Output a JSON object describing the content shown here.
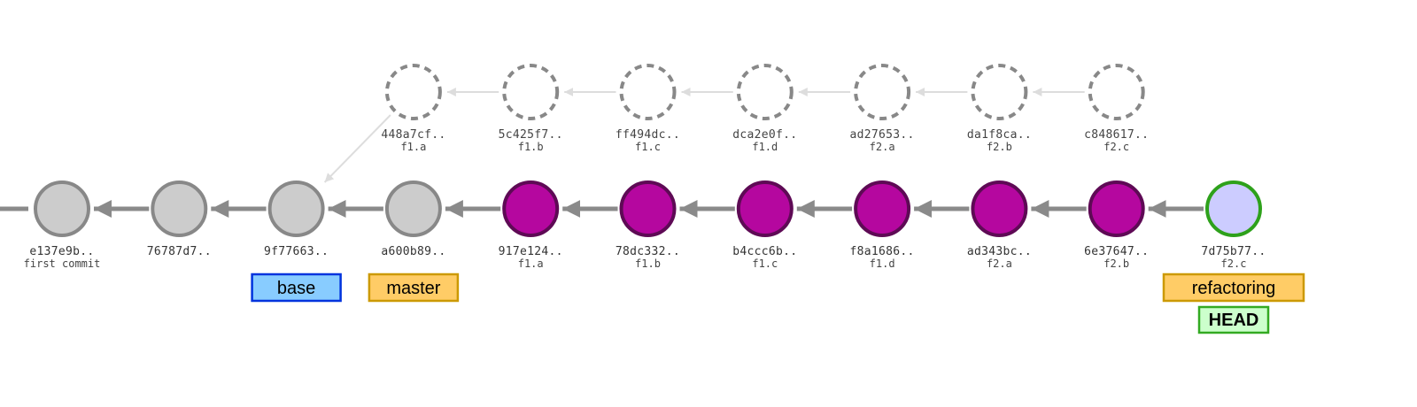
{
  "colors": {
    "default_fill": "#cccccc",
    "default_stroke": "#888888",
    "feature_fill": "#b5079f",
    "feature_stroke": "#5e0a55",
    "current_fill": "#ccccff",
    "current_stroke": "#2ea11b",
    "arrow": "#8a8a8a",
    "ghost_arrow": "#dddddd",
    "ghost_stroke": "#888888",
    "branch_fill": "#ffcc66",
    "branch_stroke": "#cc9900",
    "tag_fill": "#88ccff",
    "tag_stroke": "#0033dd",
    "head_fill": "#ccffcc",
    "head_stroke": "#33aa22"
  },
  "commits": [
    {
      "id": "e137e9b",
      "hash": "e137e9b..",
      "message": "first commit",
      "style": "default"
    },
    {
      "id": "76787d7",
      "hash": "76787d7..",
      "message": "",
      "style": "default"
    },
    {
      "id": "9f77663",
      "hash": "9f77663..",
      "message": "",
      "style": "default"
    },
    {
      "id": "a600b89",
      "hash": "a600b89..",
      "message": "",
      "style": "default"
    },
    {
      "id": "917e124",
      "hash": "917e124..",
      "message": "f1.a",
      "style": "feature"
    },
    {
      "id": "78dc332",
      "hash": "78dc332..",
      "message": "f1.b",
      "style": "feature"
    },
    {
      "id": "b4ccc6b",
      "hash": "b4ccc6b..",
      "message": "f1.c",
      "style": "feature"
    },
    {
      "id": "f8a1686",
      "hash": "f8a1686..",
      "message": "f1.d",
      "style": "feature"
    },
    {
      "id": "ad343bc",
      "hash": "ad343bc..",
      "message": "f2.a",
      "style": "feature"
    },
    {
      "id": "6e37647",
      "hash": "6e37647..",
      "message": "f2.b",
      "style": "feature"
    },
    {
      "id": "7d75b77",
      "hash": "7d75b77..",
      "message": "f2.c",
      "style": "current"
    }
  ],
  "ghost_commits": [
    {
      "id": "448a7cf",
      "hash": "448a7cf..",
      "message": "f1.a"
    },
    {
      "id": "5c425f7",
      "hash": "5c425f7..",
      "message": "f1.b"
    },
    {
      "id": "ff494dc",
      "hash": "ff494dc..",
      "message": "f1.c"
    },
    {
      "id": "dca2e0f",
      "hash": "dca2e0f..",
      "message": "f1.d"
    },
    {
      "id": "ad27653",
      "hash": "ad27653..",
      "message": "f2.a"
    },
    {
      "id": "da1f8ca",
      "hash": "da1f8ca..",
      "message": "f2.b"
    },
    {
      "id": "c848617",
      "hash": "c848617..",
      "message": "f2.c"
    }
  ],
  "ghost_parent": "9f77663",
  "refs": [
    {
      "commit": "9f77663",
      "label": "base",
      "kind": "tag"
    },
    {
      "commit": "a600b89",
      "label": "master",
      "kind": "branch"
    },
    {
      "commit": "7d75b77",
      "label": "refactoring",
      "kind": "branch"
    }
  ],
  "head": {
    "commit": "7d75b77",
    "label": "HEAD"
  }
}
